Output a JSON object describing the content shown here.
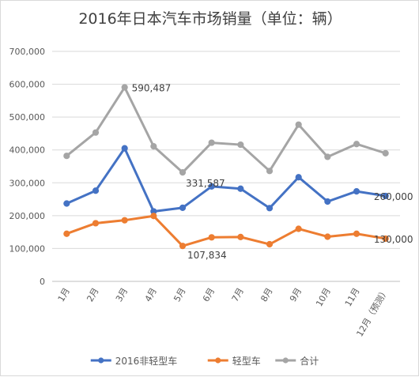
{
  "chart_data": {
    "type": "line",
    "title": "2016年日本汽车市场销量（单位：辆）",
    "categories": [
      "1月",
      "2月",
      "3月",
      "4月",
      "5月",
      "6月",
      "7月",
      "8月",
      "9月",
      "10月",
      "11月",
      "12月（预测）"
    ],
    "ylim": [
      0,
      700000
    ],
    "yticks": [
      "0",
      "100,000",
      "200,000",
      "300,000",
      "400,000",
      "500,000",
      "600,000",
      "700,000"
    ],
    "grid": true,
    "legend_position": "bottom",
    "series": [
      {
        "name": "2016非轻型车",
        "color": "#4472c4",
        "values": [
          237000,
          276000,
          405000,
          213000,
          224000,
          289000,
          282000,
          223000,
          317000,
          243000,
          274000,
          260000
        ]
      },
      {
        "name": "轻型车",
        "color": "#ed7d31",
        "values": [
          145000,
          177000,
          186000,
          199000,
          107834,
          134000,
          135000,
          113000,
          160000,
          136000,
          145000,
          130000
        ]
      },
      {
        "name": "合计",
        "color": "#a5a5a5",
        "values": [
          382000,
          453000,
          590487,
          411000,
          331587,
          422000,
          416000,
          336000,
          477000,
          379000,
          418000,
          390000
        ]
      }
    ],
    "annotations": [
      {
        "series": 2,
        "index": 2,
        "text": "590,487"
      },
      {
        "series": 2,
        "index": 4,
        "text": "331,587"
      },
      {
        "series": 1,
        "index": 4,
        "text": "107,834"
      },
      {
        "series": 0,
        "index": 11,
        "text": "260,000"
      },
      {
        "series": 1,
        "index": 11,
        "text": "130,000"
      }
    ]
  }
}
